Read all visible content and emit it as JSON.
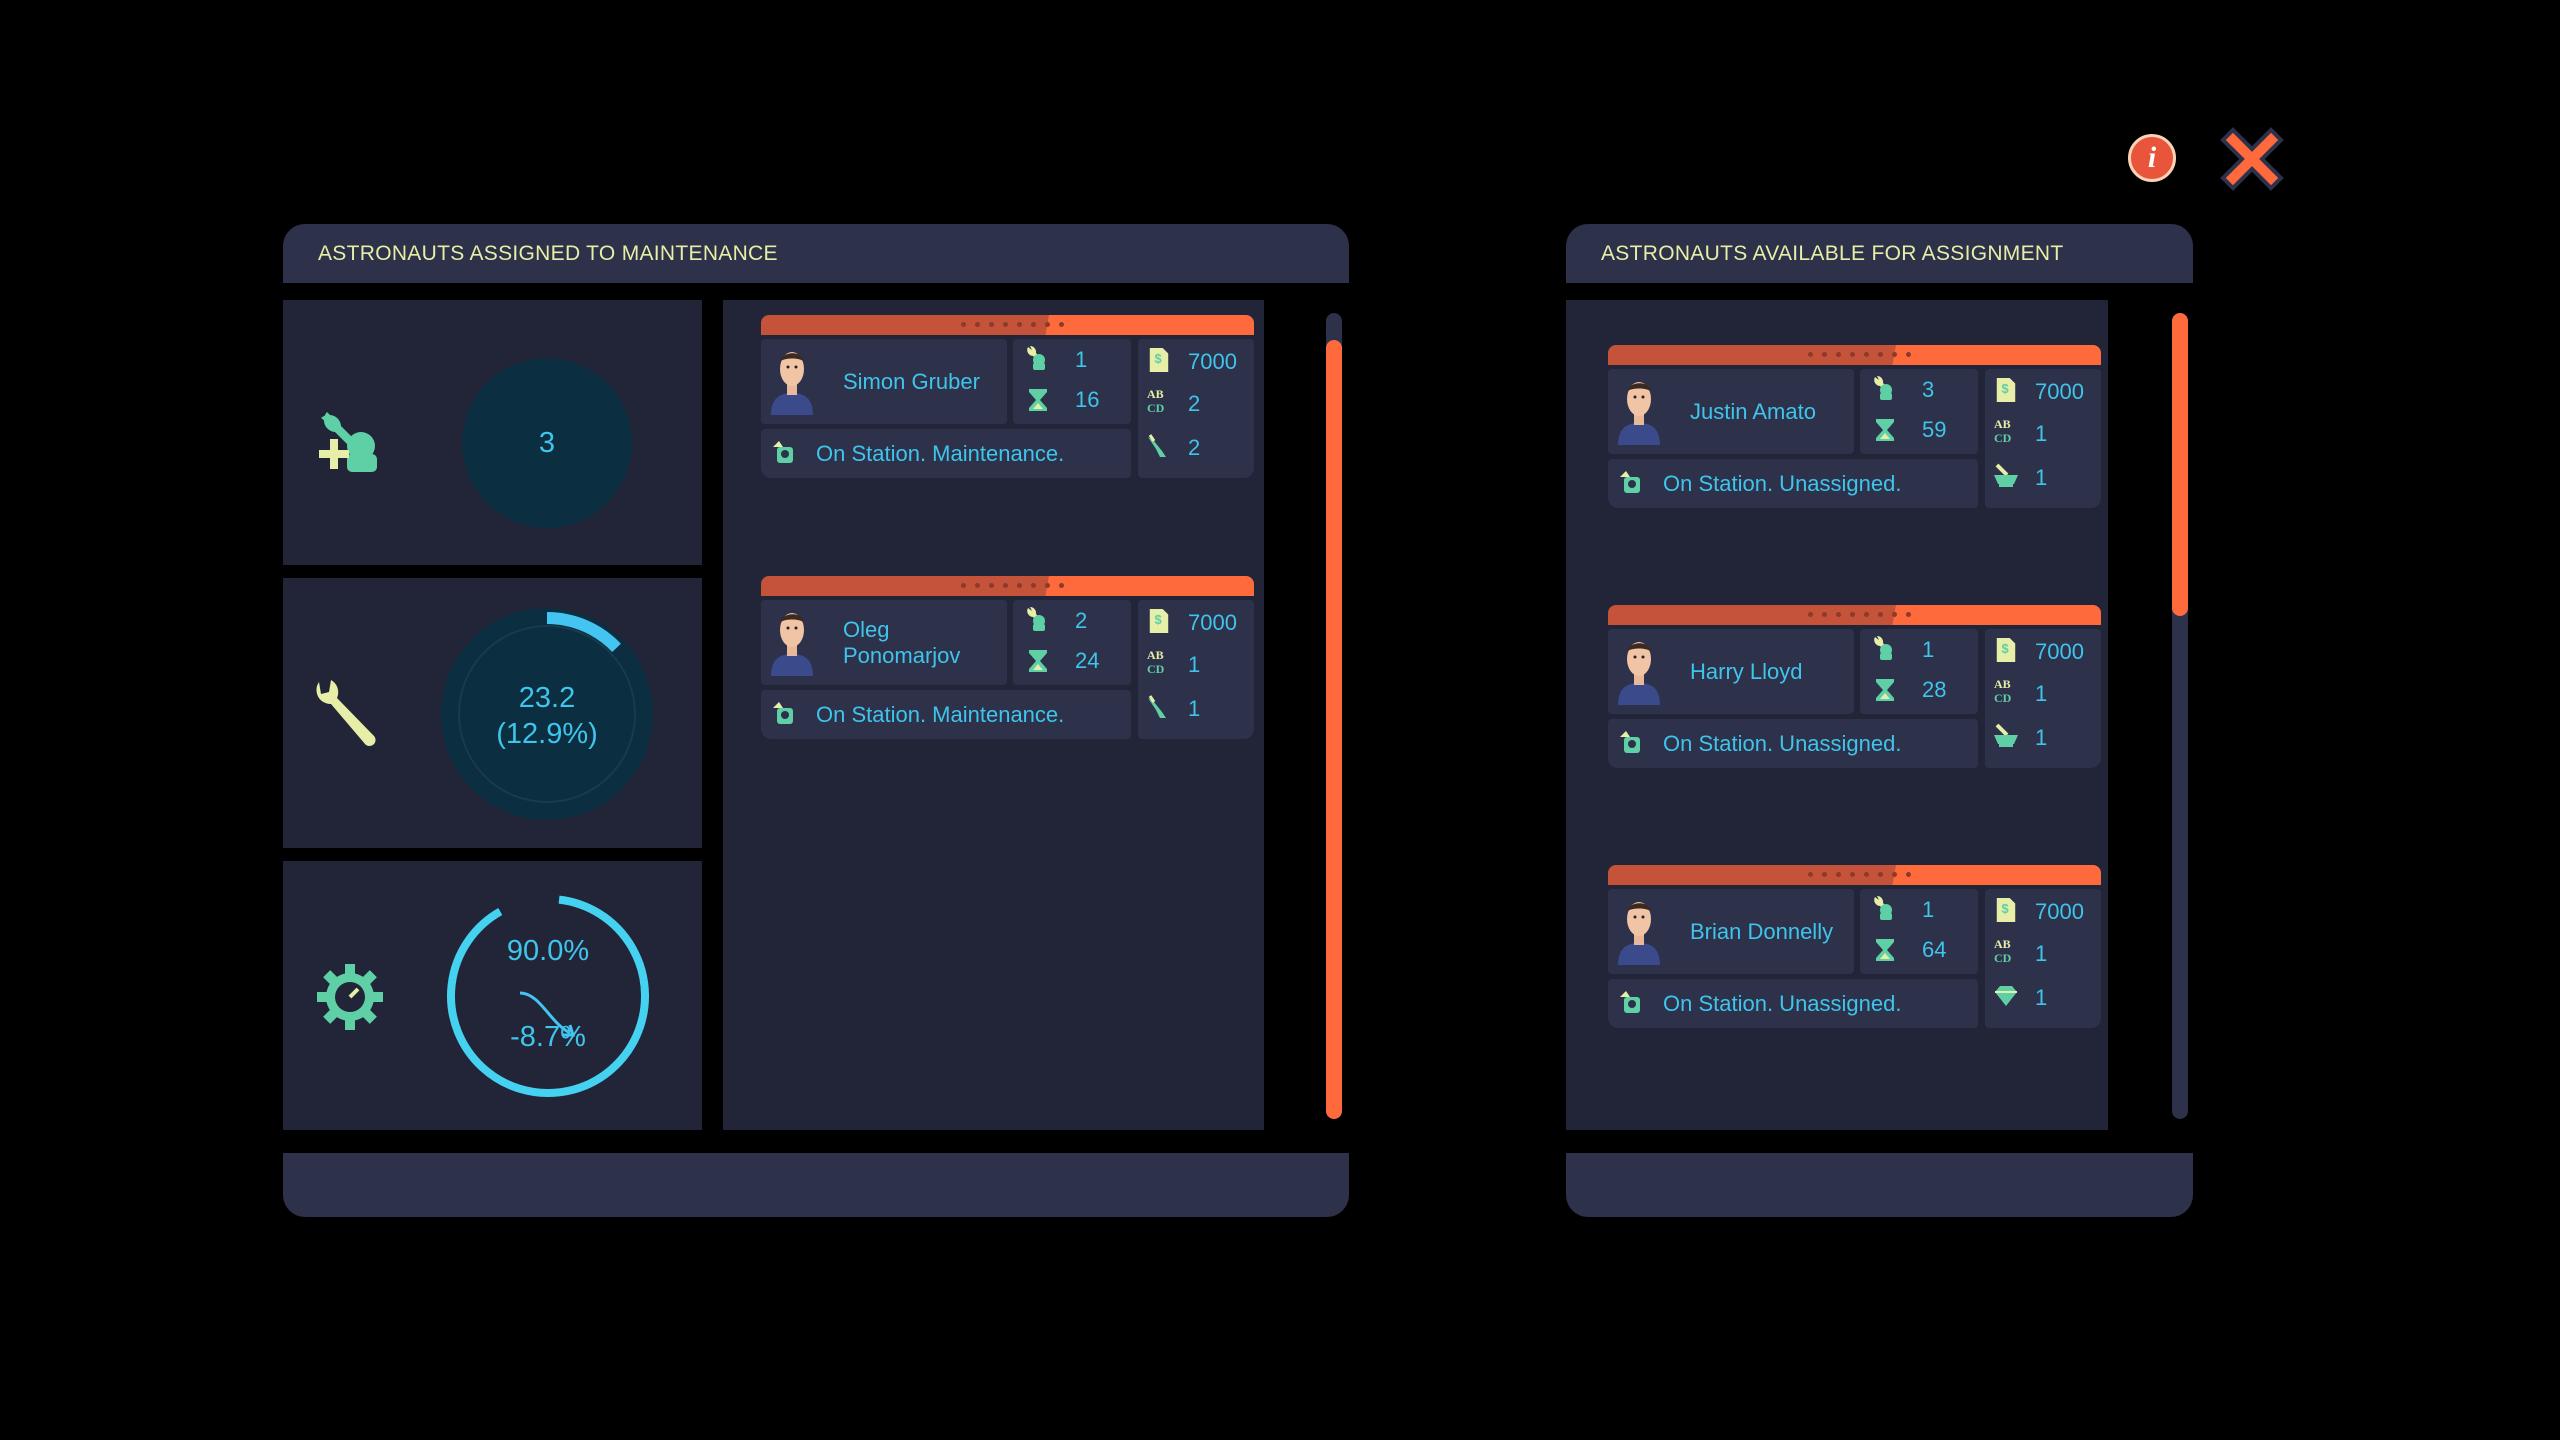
{
  "colors": {
    "accent": "#ff6a3d",
    "text": "#3fc4ec",
    "header": "#e6eea8",
    "panel": "#2d3149",
    "tile": "#222538",
    "gauge_fill": "#0b2e40",
    "ring": "#44d2f0"
  },
  "top_icons": {
    "info": "info-icon",
    "close": "close-icon"
  },
  "left_panel": {
    "title": "ASTRONAUTS ASSIGNED TO MAINTENANCE",
    "stats": [
      {
        "icon": "add-maintenance-astronaut-icon",
        "value": "3"
      },
      {
        "icon": "wrench-icon",
        "value": "23.2",
        "sub": "(12.9%)",
        "fraction": 0.129
      },
      {
        "icon": "gear-gauge-icon",
        "value": "90.0%",
        "sub": "-8.7%",
        "fraction": 0.9,
        "trend": "down"
      }
    ],
    "astronauts": [
      {
        "name": "Simon Gruber",
        "skill": "1",
        "time": "16",
        "salary": "7000",
        "education": "2",
        "status": "On Station. Maintenance.",
        "specialty": "2",
        "specialty_icon": "hand-tool-icon"
      },
      {
        "name": "Oleg Ponomarjov",
        "skill": "2",
        "time": "24",
        "salary": "7000",
        "education": "1",
        "status": "On Station. Maintenance.",
        "specialty": "1",
        "specialty_icon": "hand-tool-icon"
      }
    ],
    "scroll_fraction": 0.05
  },
  "right_panel": {
    "title": "ASTRONAUTS AVAILABLE FOR ASSIGNMENT",
    "astronauts": [
      {
        "name": "Justin Amato",
        "skill": "3",
        "time": "59",
        "salary": "7000",
        "education": "1",
        "status": "On Station. Unassigned.",
        "specialty": "1",
        "specialty_icon": "mortar-pestle-icon"
      },
      {
        "name": "Harry Lloyd",
        "skill": "1",
        "time": "28",
        "salary": "7000",
        "education": "1",
        "status": "On Station. Unassigned.",
        "specialty": "1",
        "specialty_icon": "mortar-pestle-icon"
      },
      {
        "name": "Brian Donnelly",
        "skill": "1",
        "time": "64",
        "salary": "7000",
        "education": "1",
        "status": "On Station. Unassigned.",
        "specialty": "1",
        "specialty_icon": "gem-icon"
      }
    ]
  }
}
